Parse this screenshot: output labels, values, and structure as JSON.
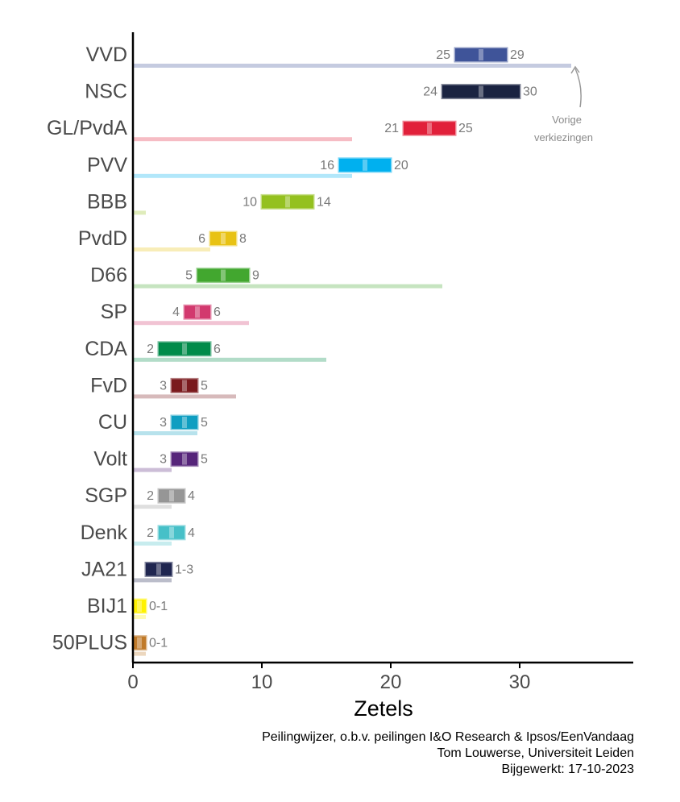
{
  "chart_data": {
    "type": "bar",
    "xlabel": "Zetels",
    "xlim": [
      0,
      39
    ],
    "xticks": [
      0,
      10,
      20,
      30
    ],
    "grid": false,
    "annotation": {
      "text_line1": "Vorige",
      "text_line2": "verkiezingen"
    },
    "parties": [
      {
        "name": "VVD",
        "low": 25,
        "high": 29,
        "label_low": "25",
        "label_high": "29",
        "previous": 34,
        "color": "#3f5499"
      },
      {
        "name": "NSC",
        "low": 24,
        "high": 30,
        "label_low": "24",
        "label_high": "30",
        "previous": 0,
        "color": "#1a2341"
      },
      {
        "name": "GL/PvdA",
        "low": 21,
        "high": 25,
        "label_low": "21",
        "label_high": "25",
        "previous": 17,
        "color": "#e1203a"
      },
      {
        "name": "PVV",
        "low": 16,
        "high": 20,
        "label_low": "16",
        "label_high": "20",
        "previous": 17,
        "color": "#00b0ef"
      },
      {
        "name": "BBB",
        "low": 10,
        "high": 14,
        "label_low": "10",
        "label_high": "14",
        "previous": 1,
        "color": "#94c11f"
      },
      {
        "name": "PvdD",
        "low": 6,
        "high": 8,
        "label_low": "6",
        "label_high": "8",
        "previous": 6,
        "color": "#e8c214"
      },
      {
        "name": "D66",
        "low": 5,
        "high": 9,
        "label_low": "5",
        "label_high": "9",
        "previous": 24,
        "color": "#42a72f"
      },
      {
        "name": "SP",
        "low": 4,
        "high": 6,
        "label_low": "4",
        "label_high": "6",
        "previous": 9,
        "color": "#d2396e"
      },
      {
        "name": "CDA",
        "low": 2,
        "high": 6,
        "label_low": "2",
        "label_high": "6",
        "previous": 15,
        "color": "#008b4a"
      },
      {
        "name": "FvD",
        "low": 3,
        "high": 5,
        "label_low": "3",
        "label_high": "5",
        "previous": 8,
        "color": "#7a1a1d"
      },
      {
        "name": "CU",
        "low": 3,
        "high": 5,
        "label_low": "3",
        "label_high": "5",
        "previous": 5,
        "color": "#0f9ec1"
      },
      {
        "name": "Volt",
        "low": 3,
        "high": 5,
        "label_low": "3",
        "label_high": "5",
        "previous": 3,
        "color": "#56257a"
      },
      {
        "name": "SGP",
        "low": 2,
        "high": 4,
        "label_low": "2",
        "label_high": "4",
        "previous": 3,
        "color": "#969696"
      },
      {
        "name": "Denk",
        "low": 2,
        "high": 4,
        "label_low": "2",
        "label_high": "4",
        "previous": 3,
        "color": "#47c0c8"
      },
      {
        "name": "JA21",
        "low": 1,
        "high": 3,
        "label_low": "",
        "label_high": "1-3",
        "previous": 3,
        "color": "#1f2650"
      },
      {
        "name": "BIJ1",
        "low": 0,
        "high": 1,
        "label_low": "",
        "label_high": "0-1",
        "previous": 1,
        "color": "#fff200"
      },
      {
        "name": "50PLUS",
        "low": 0,
        "high": 1,
        "label_low": "",
        "label_high": "0-1",
        "previous": 1,
        "color": "#c07a29"
      }
    ]
  },
  "caption": {
    "line1": "Peilingwijzer, o.b.v. peilingen I&O Research & Ipsos/EenVandaag",
    "line2": "Tom Louwerse, Universiteit Leiden",
    "line3": "Bijgewerkt: 17-10-2023"
  }
}
